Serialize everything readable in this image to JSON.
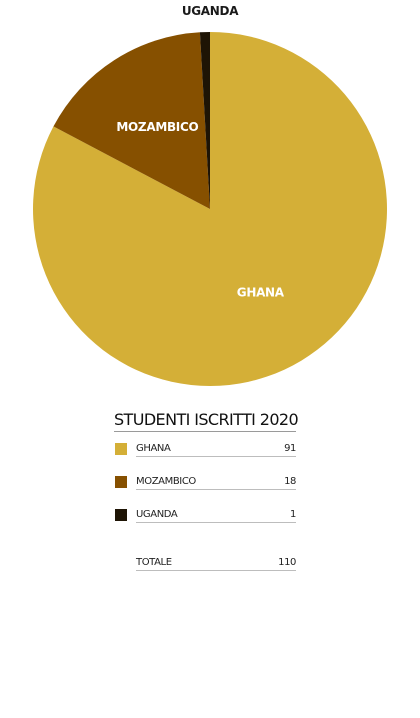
{
  "chart_data": {
    "type": "pie",
    "title": "STUDENTI ISCRITTI 2020",
    "categories": [
      "GHANA",
      "MOZAMBICO",
      "UGANDA"
    ],
    "values": [
      91,
      18,
      1
    ],
    "colors": [
      "#d4af37",
      "#865000",
      "#1e1405"
    ],
    "total_label": "TOTALE",
    "total_value": 110,
    "legend_position": "bottom"
  }
}
